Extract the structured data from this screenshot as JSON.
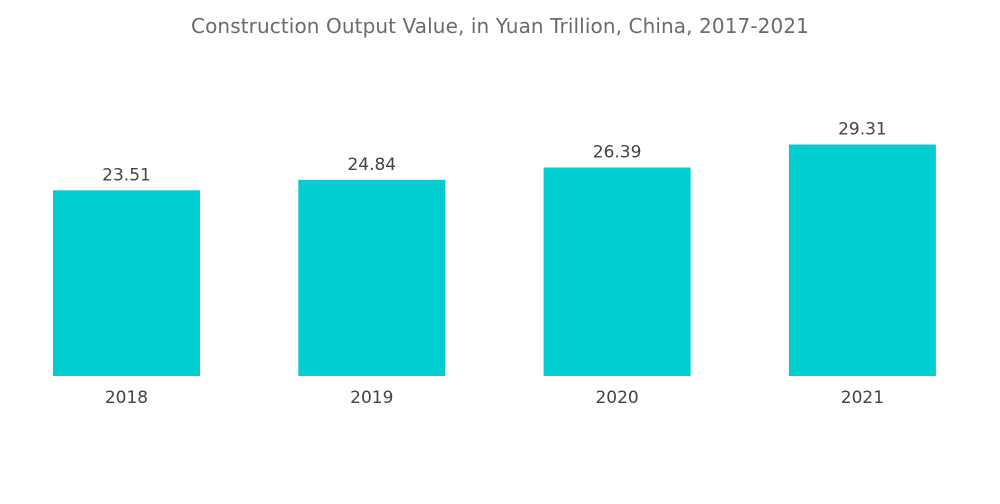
{
  "chart_data": {
    "type": "bar",
    "title": "Construction Output Value, in Yuan Trillion, China, 2017-2021",
    "xlabel": "",
    "ylabel": "",
    "categories": [
      "2018",
      "2019",
      "2020",
      "2021"
    ],
    "values": [
      23.51,
      24.84,
      26.39,
      29.31
    ],
    "data_labels": [
      "23.51",
      "24.84",
      "26.39",
      "29.31"
    ],
    "ylim": [
      0,
      31
    ],
    "grid": false,
    "legend": "none",
    "bar_color": "#00CED1",
    "text_color": "#444444",
    "title_color": "#6b6b6b"
  }
}
